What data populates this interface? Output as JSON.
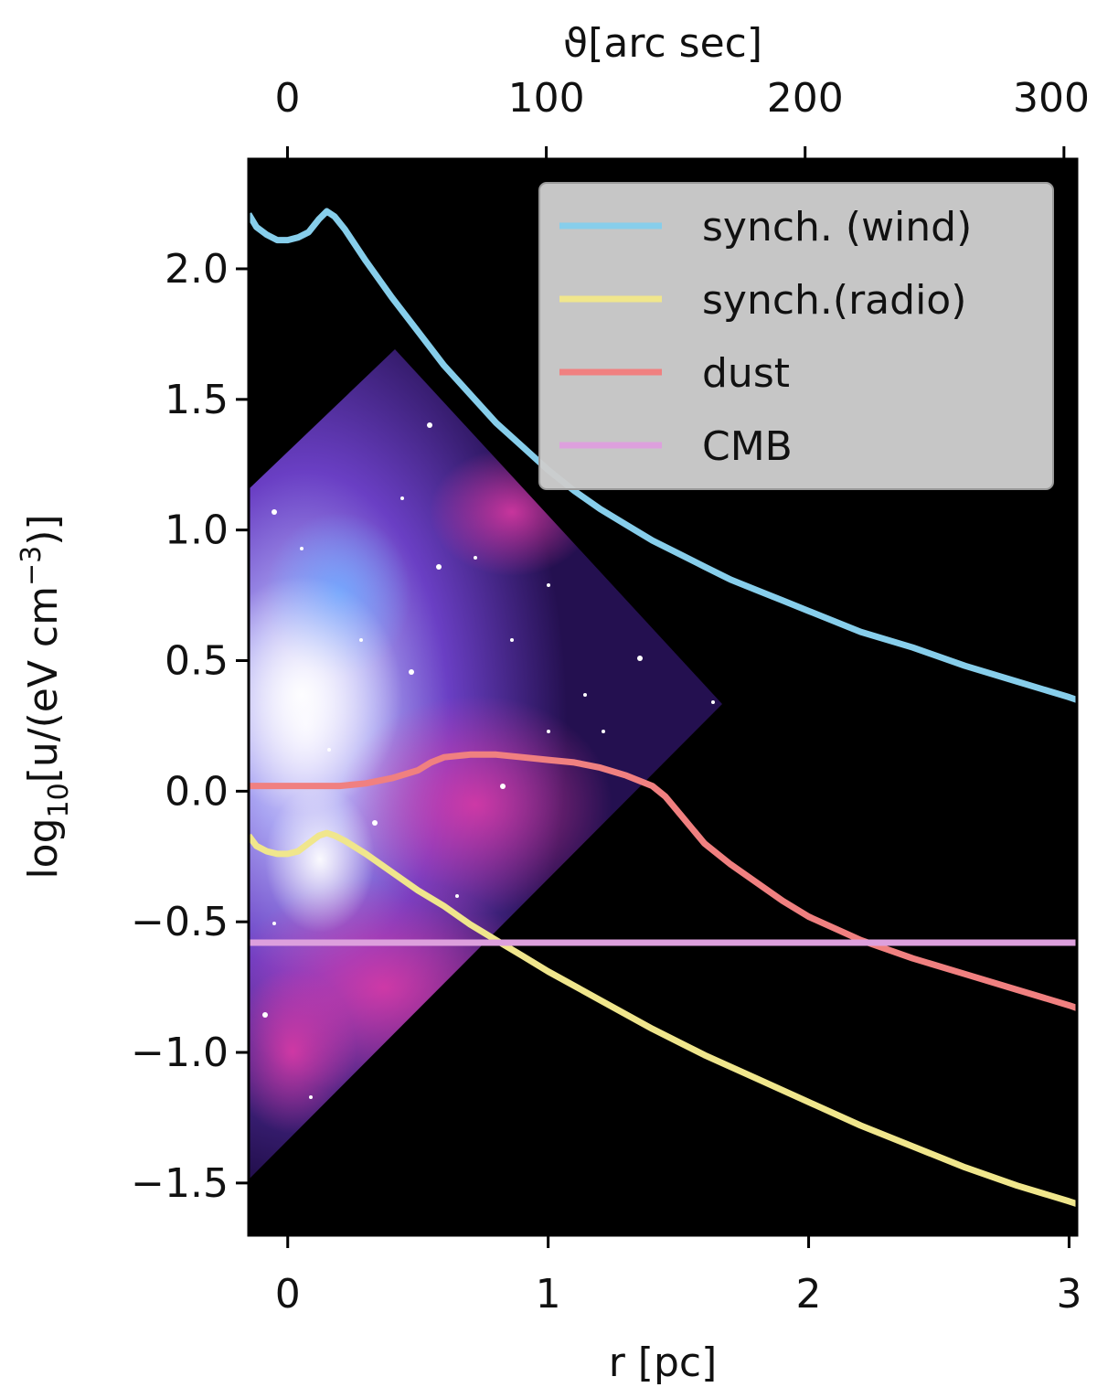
{
  "chart_data": {
    "type": "line",
    "title": "",
    "xlabel": "r [pc]",
    "ylabel": "log10[u/(eV cm−3)]",
    "ylabel_parts": {
      "prefix": "log",
      "sub": "10",
      "mid": "[u/(eV cm",
      "sup": "−3",
      "suffix": ")]"
    },
    "top_xlabel": "ϑ[arc sec]",
    "xlim": [
      -0.15,
      3.03
    ],
    "ylim": [
      -1.7,
      2.42
    ],
    "x_ticks": [
      {
        "value": 0,
        "label": "0"
      },
      {
        "value": 1,
        "label": "1"
      },
      {
        "value": 2,
        "label": "2"
      },
      {
        "value": 3,
        "label": "3"
      }
    ],
    "y_ticks": [
      {
        "value": 2.0,
        "label": "2.0"
      },
      {
        "value": 1.5,
        "label": "1.5"
      },
      {
        "value": 1.0,
        "label": "1.0"
      },
      {
        "value": 0.5,
        "label": "0.5"
      },
      {
        "value": 0.0,
        "label": "0.0"
      },
      {
        "value": -0.5,
        "label": "−0.5"
      },
      {
        "value": -1.0,
        "label": "−1.0"
      },
      {
        "value": -1.5,
        "label": "−1.5"
      }
    ],
    "top_ticks": [
      {
        "value": 0,
        "label": "0"
      },
      {
        "value": 100,
        "label": "100"
      },
      {
        "value": 200,
        "label": "200"
      },
      {
        "value": 300,
        "label": "300"
      }
    ],
    "top_xlim": [
      -15,
      305
    ],
    "grid": false,
    "background_color": "#000000",
    "legend_position": "top-right",
    "inset_image": "nebula",
    "series": [
      {
        "name": "synch. (wind)",
        "color": "#87ceeb",
        "x": [
          -0.15,
          -0.12,
          -0.08,
          -0.04,
          0.0,
          0.04,
          0.08,
          0.12,
          0.15,
          0.18,
          0.22,
          0.3,
          0.4,
          0.5,
          0.6,
          0.7,
          0.8,
          0.9,
          1.0,
          1.1,
          1.2,
          1.3,
          1.4,
          1.5,
          1.6,
          1.7,
          1.8,
          1.9,
          2.0,
          2.2,
          2.4,
          2.6,
          2.8,
          3.0,
          3.03
        ],
        "y": [
          2.21,
          2.16,
          2.13,
          2.11,
          2.11,
          2.12,
          2.14,
          2.19,
          2.22,
          2.2,
          2.15,
          2.03,
          1.89,
          1.76,
          1.63,
          1.52,
          1.41,
          1.32,
          1.23,
          1.15,
          1.08,
          1.02,
          0.96,
          0.91,
          0.86,
          0.81,
          0.77,
          0.73,
          0.69,
          0.61,
          0.55,
          0.48,
          0.42,
          0.36,
          0.35
        ]
      },
      {
        "name": "synch.(radio)",
        "color": "#f0e68c",
        "x": [
          -0.15,
          -0.12,
          -0.08,
          -0.04,
          0.0,
          0.04,
          0.08,
          0.12,
          0.15,
          0.18,
          0.22,
          0.3,
          0.4,
          0.5,
          0.6,
          0.7,
          0.8,
          0.9,
          1.0,
          1.2,
          1.4,
          1.6,
          1.8,
          2.0,
          2.2,
          2.4,
          2.6,
          2.8,
          3.0,
          3.03
        ],
        "y": [
          -0.17,
          -0.21,
          -0.23,
          -0.24,
          -0.24,
          -0.23,
          -0.2,
          -0.17,
          -0.16,
          -0.17,
          -0.19,
          -0.24,
          -0.31,
          -0.38,
          -0.44,
          -0.51,
          -0.57,
          -0.63,
          -0.69,
          -0.8,
          -0.91,
          -1.01,
          -1.1,
          -1.19,
          -1.28,
          -1.36,
          -1.44,
          -1.51,
          -1.57,
          -1.58
        ]
      },
      {
        "name": "dust",
        "color": "#f08080",
        "x": [
          -0.15,
          0.0,
          0.1,
          0.2,
          0.3,
          0.4,
          0.5,
          0.55,
          0.6,
          0.7,
          0.8,
          0.9,
          1.0,
          1.1,
          1.2,
          1.3,
          1.4,
          1.45,
          1.5,
          1.55,
          1.6,
          1.7,
          1.8,
          1.9,
          2.0,
          2.2,
          2.4,
          2.6,
          2.8,
          3.0,
          3.03
        ],
        "y": [
          0.02,
          0.02,
          0.02,
          0.02,
          0.03,
          0.05,
          0.08,
          0.11,
          0.13,
          0.14,
          0.14,
          0.13,
          0.12,
          0.11,
          0.09,
          0.06,
          0.02,
          -0.02,
          -0.08,
          -0.14,
          -0.2,
          -0.28,
          -0.35,
          -0.42,
          -0.48,
          -0.57,
          -0.64,
          -0.7,
          -0.76,
          -0.82,
          -0.83
        ]
      },
      {
        "name": "CMB",
        "color": "#dda0dd",
        "x": [
          -0.15,
          3.03
        ],
        "y": [
          -0.58,
          -0.58
        ]
      }
    ]
  }
}
